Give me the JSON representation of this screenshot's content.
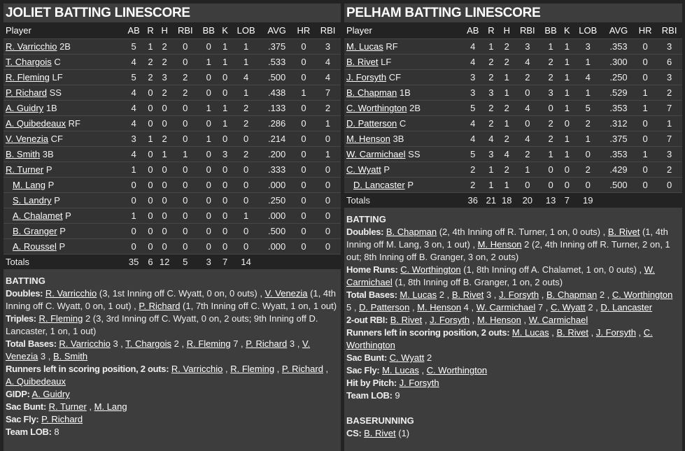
{
  "columns": [
    "Player",
    "AB",
    "R",
    "H",
    "RBI",
    "BB",
    "K",
    "LOB",
    "AVG",
    "HR",
    "RBI"
  ],
  "left": {
    "title": "JOLIET BATTING LINESCORE",
    "rows": [
      {
        "name": "R. Varricchio",
        "pos": "2B",
        "sub": false,
        "stats": [
          "5",
          "1",
          "2",
          "0",
          "0",
          "1",
          "1",
          ".375",
          "0",
          "3"
        ]
      },
      {
        "name": "T. Chargois",
        "pos": "C",
        "sub": false,
        "stats": [
          "4",
          "2",
          "2",
          "0",
          "1",
          "1",
          "1",
          ".533",
          "0",
          "4"
        ]
      },
      {
        "name": "R. Fleming",
        "pos": "LF",
        "sub": false,
        "stats": [
          "5",
          "2",
          "3",
          "2",
          "0",
          "0",
          "4",
          ".500",
          "0",
          "4"
        ]
      },
      {
        "name": "P. Richard",
        "pos": "SS",
        "sub": false,
        "stats": [
          "4",
          "0",
          "2",
          "2",
          "0",
          "0",
          "1",
          ".438",
          "1",
          "7"
        ]
      },
      {
        "name": "A. Guidry",
        "pos": "1B",
        "sub": false,
        "stats": [
          "4",
          "0",
          "0",
          "0",
          "1",
          "1",
          "2",
          ".133",
          "0",
          "2"
        ]
      },
      {
        "name": "A. Quibedeaux",
        "pos": "RF",
        "sub": false,
        "stats": [
          "4",
          "0",
          "0",
          "0",
          "0",
          "1",
          "2",
          ".286",
          "0",
          "1"
        ]
      },
      {
        "name": "V. Venezia",
        "pos": "CF",
        "sub": false,
        "stats": [
          "3",
          "1",
          "2",
          "0",
          "1",
          "0",
          "0",
          ".214",
          "0",
          "0"
        ]
      },
      {
        "name": "B. Smith",
        "pos": "3B",
        "sub": false,
        "stats": [
          "4",
          "0",
          "1",
          "1",
          "0",
          "3",
          "2",
          ".200",
          "0",
          "1"
        ]
      },
      {
        "name": "R. Turner",
        "pos": "P",
        "sub": false,
        "stats": [
          "1",
          "0",
          "0",
          "0",
          "0",
          "0",
          "0",
          ".333",
          "0",
          "0"
        ]
      },
      {
        "name": "M. Lang",
        "pos": "P",
        "sub": true,
        "stats": [
          "0",
          "0",
          "0",
          "0",
          "0",
          "0",
          "0",
          ".000",
          "0",
          "0"
        ]
      },
      {
        "name": "S. Landry",
        "pos": "P",
        "sub": true,
        "stats": [
          "0",
          "0",
          "0",
          "0",
          "0",
          "0",
          "0",
          ".250",
          "0",
          "0"
        ]
      },
      {
        "name": "A. Chalamet",
        "pos": "P",
        "sub": true,
        "stats": [
          "1",
          "0",
          "0",
          "0",
          "0",
          "0",
          "1",
          ".000",
          "0",
          "0"
        ]
      },
      {
        "name": "B. Granger",
        "pos": "P",
        "sub": true,
        "stats": [
          "0",
          "0",
          "0",
          "0",
          "0",
          "0",
          "0",
          ".500",
          "0",
          "0"
        ]
      },
      {
        "name": "A. Roussel",
        "pos": "P",
        "sub": true,
        "stats": [
          "0",
          "0",
          "0",
          "0",
          "0",
          "0",
          "0",
          ".000",
          "0",
          "0"
        ]
      }
    ],
    "totals": {
      "label": "Totals",
      "stats": [
        "35",
        "6",
        "12",
        "5",
        "3",
        "7",
        "14",
        "",
        "",
        ""
      ]
    },
    "sections": [
      {
        "heading": "BATTING",
        "lines": [
          {
            "label": "Doubles:",
            "parts": [
              {
                "l": "R. Varricchio"
              },
              {
                "t": " (3, 1st Inning off C. Wyatt, 0 on, 0 outs) , "
              },
              {
                "l": "V. Venezia"
              },
              {
                "t": " (1, 4th Inning off C. Wyatt, 0 on, 1 out) , "
              },
              {
                "l": "P. Richard"
              },
              {
                "t": " (1, 7th Inning off C. Wyatt, 1 on, 1 out)"
              }
            ]
          },
          {
            "label": "Triples:",
            "parts": [
              {
                "l": "R. Fleming"
              },
              {
                "t": " 2 (3, 3rd Inning off C. Wyatt, 0 on, 2 outs; 9th Inning off D. Lancaster, 1 on, 1 out)"
              }
            ]
          },
          {
            "label": "Total Bases:",
            "parts": [
              {
                "l": "R. Varricchio"
              },
              {
                "t": " 3 , "
              },
              {
                "l": "T. Chargois"
              },
              {
                "t": " 2 , "
              },
              {
                "l": "R. Fleming"
              },
              {
                "t": " 7 , "
              },
              {
                "l": "P. Richard"
              },
              {
                "t": " 3 , "
              },
              {
                "l": "V. Venezia"
              },
              {
                "t": " 3 , "
              },
              {
                "l": "B. Smith"
              }
            ]
          },
          {
            "label": "Runners left in scoring position, 2 outs:",
            "parts": [
              {
                "l": "R. Varricchio"
              },
              {
                "t": " , "
              },
              {
                "l": "R. Fleming"
              },
              {
                "t": " , "
              },
              {
                "l": "P. Richard"
              },
              {
                "t": " , "
              },
              {
                "l": "A. Quibedeaux"
              }
            ]
          },
          {
            "label": "GIDP:",
            "parts": [
              {
                "l": "A. Guidry"
              }
            ]
          },
          {
            "label": "Sac Bunt:",
            "parts": [
              {
                "l": "R. Turner"
              },
              {
                "t": " , "
              },
              {
                "l": "M. Lang"
              }
            ]
          },
          {
            "label": "Sac Fly:",
            "parts": [
              {
                "l": "P. Richard"
              }
            ]
          },
          {
            "label": "Team LOB:",
            "parts": [
              {
                "t": " 8"
              }
            ]
          }
        ]
      }
    ]
  },
  "right": {
    "title": "PELHAM BATTING LINESCORE",
    "rows": [
      {
        "name": "M. Lucas",
        "pos": "RF",
        "sub": false,
        "stats": [
          "4",
          "1",
          "2",
          "3",
          "1",
          "1",
          "3",
          ".353",
          "0",
          "3"
        ]
      },
      {
        "name": "B. Rivet",
        "pos": "LF",
        "sub": false,
        "stats": [
          "4",
          "2",
          "2",
          "4",
          "2",
          "1",
          "1",
          ".300",
          "0",
          "6"
        ]
      },
      {
        "name": "J. Forsyth",
        "pos": "CF",
        "sub": false,
        "stats": [
          "3",
          "2",
          "1",
          "2",
          "2",
          "1",
          "4",
          ".250",
          "0",
          "3"
        ]
      },
      {
        "name": "B. Chapman",
        "pos": "1B",
        "sub": false,
        "stats": [
          "3",
          "3",
          "1",
          "0",
          "3",
          "1",
          "1",
          ".529",
          "1",
          "2"
        ]
      },
      {
        "name": "C. Worthington",
        "pos": "2B",
        "sub": false,
        "stats": [
          "5",
          "2",
          "2",
          "4",
          "0",
          "1",
          "5",
          ".353",
          "1",
          "7"
        ]
      },
      {
        "name": "D. Patterson",
        "pos": "C",
        "sub": false,
        "stats": [
          "4",
          "2",
          "1",
          "0",
          "2",
          "0",
          "2",
          ".312",
          "0",
          "1"
        ]
      },
      {
        "name": "M. Henson",
        "pos": "3B",
        "sub": false,
        "stats": [
          "4",
          "4",
          "2",
          "4",
          "2",
          "1",
          "1",
          ".375",
          "0",
          "7"
        ]
      },
      {
        "name": "W. Carmichael",
        "pos": "SS",
        "sub": false,
        "stats": [
          "5",
          "3",
          "4",
          "2",
          "1",
          "1",
          "0",
          ".353",
          "1",
          "3"
        ]
      },
      {
        "name": "C. Wyatt",
        "pos": "P",
        "sub": false,
        "stats": [
          "2",
          "1",
          "2",
          "1",
          "0",
          "0",
          "2",
          ".429",
          "0",
          "2"
        ]
      },
      {
        "name": "D. Lancaster",
        "pos": "P",
        "sub": true,
        "stats": [
          "2",
          "1",
          "1",
          "0",
          "0",
          "0",
          "0",
          ".500",
          "0",
          "0"
        ]
      }
    ],
    "totals": {
      "label": "Totals",
      "stats": [
        "36",
        "21",
        "18",
        "20",
        "13",
        "7",
        "19",
        "",
        "",
        ""
      ]
    },
    "sections": [
      {
        "heading": "BATTING",
        "lines": [
          {
            "label": "Doubles:",
            "parts": [
              {
                "l": "B. Chapman"
              },
              {
                "t": " (2, 4th Inning off R. Turner, 1 on, 0 outs) , "
              },
              {
                "l": "B. Rivet"
              },
              {
                "t": " (1, 4th Inning off M. Lang, 3 on, 1 out) , "
              },
              {
                "l": "M. Henson"
              },
              {
                "t": " 2 (2, 4th Inning off R. Turner, 2 on, 1 out; 8th Inning off B. Granger, 3 on, 2 outs)"
              }
            ]
          },
          {
            "label": "Home Runs:",
            "parts": [
              {
                "l": "C. Worthington"
              },
              {
                "t": " (1, 8th Inning off A. Chalamet, 1 on, 0 outs) , "
              },
              {
                "l": "W. Carmichael"
              },
              {
                "t": " (1, 8th Inning off B. Granger, 1 on, 2 outs)"
              }
            ]
          },
          {
            "label": "Total Bases:",
            "parts": [
              {
                "l": "M. Lucas"
              },
              {
                "t": " 2 , "
              },
              {
                "l": "B. Rivet"
              },
              {
                "t": " 3 , "
              },
              {
                "l": "J. Forsyth"
              },
              {
                "t": " , "
              },
              {
                "l": "B. Chapman"
              },
              {
                "t": " 2 , "
              },
              {
                "l": "C. Worthington"
              },
              {
                "t": " 5 , "
              },
              {
                "l": "D. Patterson"
              },
              {
                "t": " , "
              },
              {
                "l": "M. Henson"
              },
              {
                "t": " 4 , "
              },
              {
                "l": "W. Carmichael"
              },
              {
                "t": " 7 , "
              },
              {
                "l": "C. Wyatt"
              },
              {
                "t": " 2 , "
              },
              {
                "l": "D. Lancaster"
              }
            ]
          },
          {
            "label": "2-out RBI:",
            "parts": [
              {
                "l": "B. Rivet"
              },
              {
                "t": " , "
              },
              {
                "l": "J. Forsyth"
              },
              {
                "t": " , "
              },
              {
                "l": "M. Henson"
              },
              {
                "t": " , "
              },
              {
                "l": "W. Carmichael"
              }
            ]
          },
          {
            "label": "Runners left in scoring position, 2 outs:",
            "parts": [
              {
                "l": "M. Lucas"
              },
              {
                "t": " , "
              },
              {
                "l": "B. Rivet"
              },
              {
                "t": " , "
              },
              {
                "l": "J. Forsyth"
              },
              {
                "t": " , "
              },
              {
                "l": "C. Worthington"
              }
            ]
          },
          {
            "label": "Sac Bunt:",
            "parts": [
              {
                "l": "C. Wyatt"
              },
              {
                "t": " 2"
              }
            ]
          },
          {
            "label": "Sac Fly:",
            "parts": [
              {
                "l": "M. Lucas"
              },
              {
                "t": " , "
              },
              {
                "l": "C. Worthington"
              }
            ]
          },
          {
            "label": "Hit by Pitch:",
            "parts": [
              {
                "l": "J. Forsyth"
              }
            ]
          },
          {
            "label": "Team LOB:",
            "parts": [
              {
                "t": " 9"
              }
            ]
          }
        ]
      },
      {
        "heading": "BASERUNNING",
        "lines": [
          {
            "label": "CS:",
            "parts": [
              {
                "l": "B. Rivet"
              },
              {
                "t": " (1)"
              }
            ]
          }
        ]
      }
    ]
  }
}
